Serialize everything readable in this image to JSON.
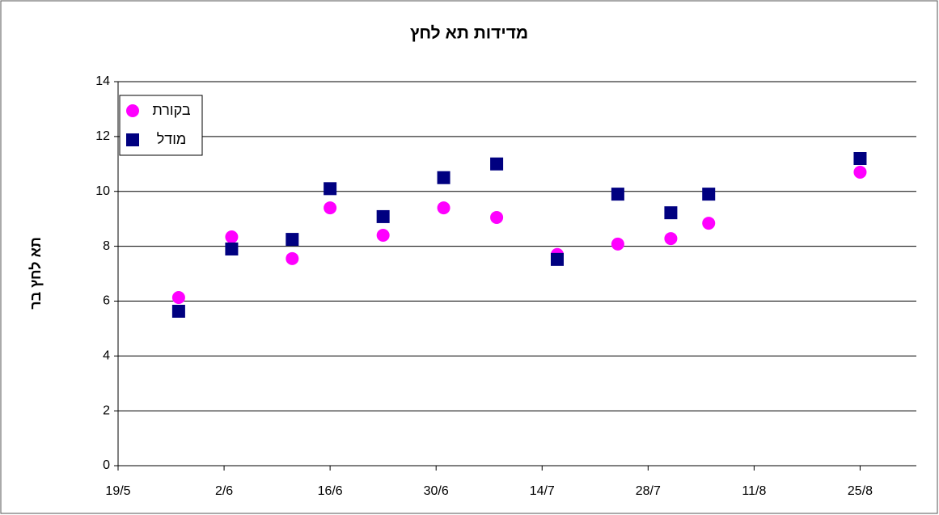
{
  "chart_data": {
    "type": "scatter",
    "title": "מדידות תא לחץ",
    "y_label": "תא לחץ בר",
    "x": [
      "27/5",
      "3/6",
      "11/6",
      "16/6",
      "23/6",
      "1/7",
      "8/7",
      "16/7",
      "24/7",
      "31/7",
      "5/8",
      "25/8"
    ],
    "series": [
      {
        "name": "בקורת",
        "color": "#ff00ff",
        "marker": "circle",
        "values": [
          6.13,
          8.34,
          7.55,
          9.4,
          8.4,
          9.4,
          9.05,
          7.7,
          8.08,
          8.28,
          8.84,
          10.7
        ]
      },
      {
        "name": "מודל",
        "color": "#000080",
        "marker": "square",
        "values": [
          5.63,
          7.9,
          8.25,
          10.1,
          9.08,
          10.5,
          11.0,
          7.52,
          9.9,
          9.22,
          9.9,
          11.2
        ]
      }
    ],
    "xlim": [
      "19/5",
      "1/9"
    ],
    "xticks": [
      "19/5",
      "2/6",
      "16/6",
      "30/6",
      "14/7",
      "28/7",
      "11/8",
      "25/8"
    ],
    "ylim": [
      0,
      14
    ],
    "yticks": [
      0,
      2,
      4,
      6,
      8,
      10,
      12,
      14
    ],
    "grid": true,
    "legend": "upper left"
  }
}
